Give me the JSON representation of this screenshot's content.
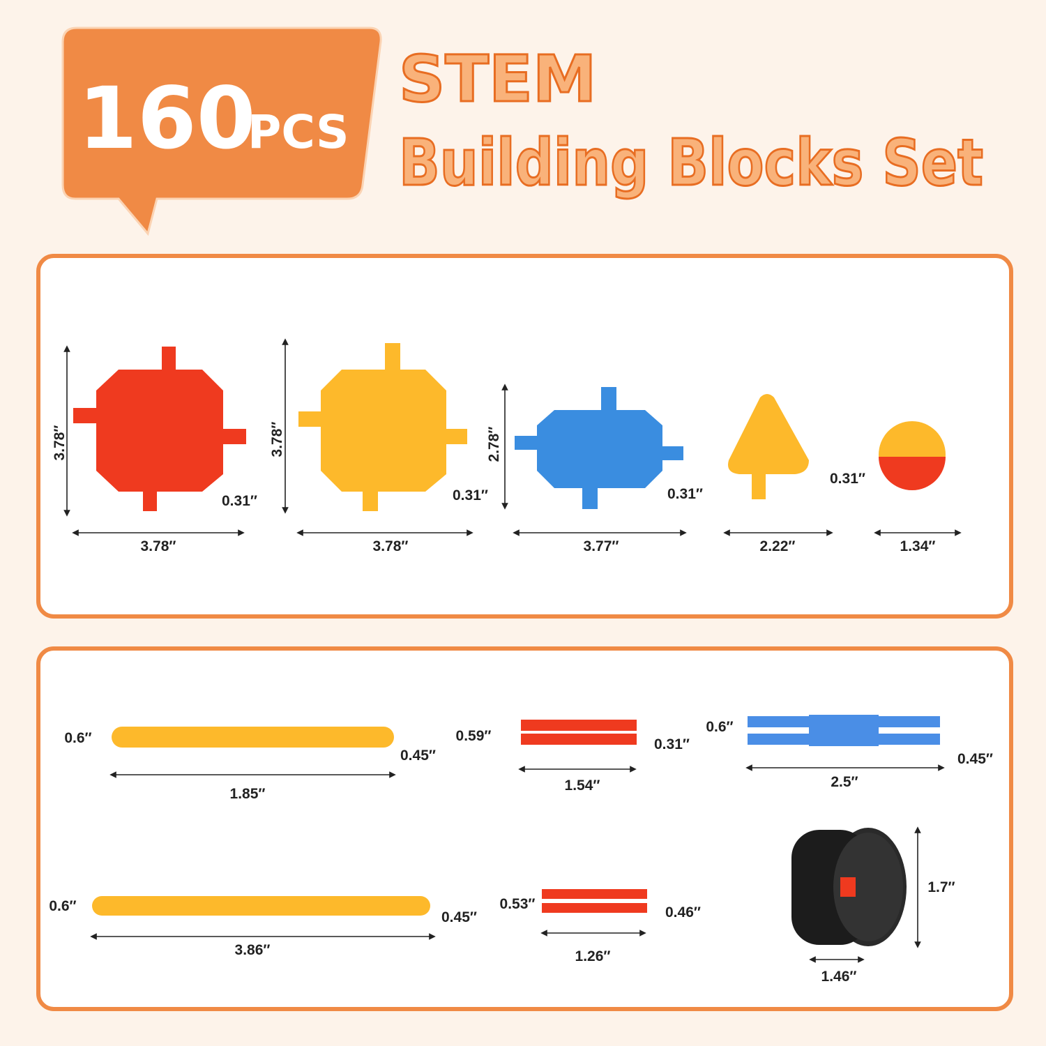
{
  "header": {
    "count": "160",
    "unit": "PCS",
    "title_line1": "STEM",
    "title_line2": "Building Blocks Set"
  },
  "panels": [
    {
      "pieces": [
        {
          "height": "3.78″",
          "thickness": "0.31″",
          "width": "3.78″"
        },
        {
          "height": "3.78″",
          "thickness": "0.31″",
          "width": "3.78″"
        },
        {
          "height": "2.78″",
          "thickness": "0.31″",
          "width": "3.77″"
        },
        {
          "thickness": "0.31″",
          "width": "2.22″"
        },
        {
          "width": "1.34″"
        }
      ]
    },
    {
      "pieces": [
        {
          "height": "0.6″",
          "thickness": "0.45″",
          "width": "1.85″"
        },
        {
          "height": "0.59″",
          "thickness": "0.31″",
          "width": "1.54″"
        },
        {
          "height": "0.6″",
          "thickness": "0.45″",
          "width": "2.5″"
        },
        {
          "height": "0.6″",
          "thickness": "0.45″",
          "width": "3.86″"
        },
        {
          "height": "0.53″",
          "thickness": "0.46″",
          "width": "1.26″"
        },
        {
          "height": "1.7″",
          "width": "1.46″"
        }
      ]
    }
  ]
}
